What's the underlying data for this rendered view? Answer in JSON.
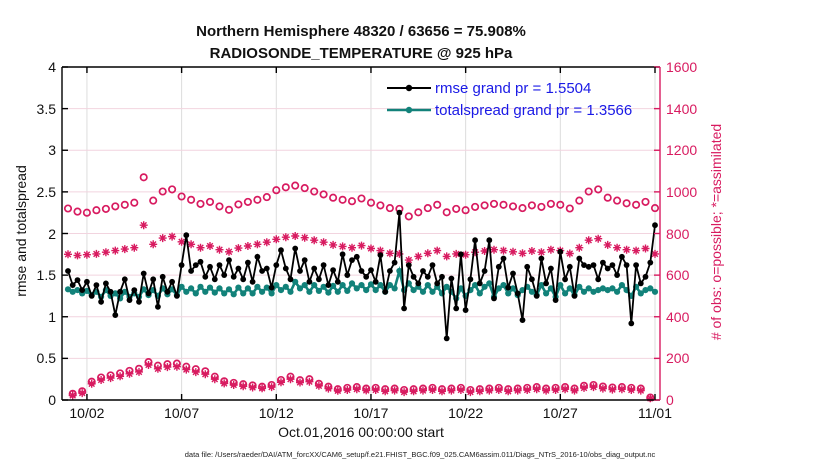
{
  "figure": {
    "footer": "data file: /Users/raeder/DAI/ATM_forcXX/CAM6_setup/f.e21.FHIST_BGC.f09_025.CAM6assim.011/Diags_NTrS_2016-10/obs_diag_output.nc"
  },
  "colors": {
    "rmse": "#000000",
    "totalspread": "#12827A",
    "obs": "#D81B60",
    "legend_text": "#1A1AE6",
    "grid_h": "#F2D4DF",
    "grid_v": "#DCDCDC",
    "axis": "#000000"
  },
  "chart_data": {
    "type": "line",
    "title": "Northern Hemisphere 48320 / 63656 = 75.908%",
    "subtitle": "RADIOSONDE_TEMPERATURE @ 925 hPa",
    "xlabel": "Oct.01,2016 00:00:00 start",
    "ylabel_left": "rmse and totalspread",
    "ylabel_right": "# of obs: o=possible; *=assimilated",
    "ylim_left": [
      0,
      4
    ],
    "ylim_right": [
      0,
      1600
    ],
    "grid": true,
    "x_start_day": 0,
    "x_step_days": 0.25,
    "x_tick_days": [
      1,
      6,
      11,
      16,
      21,
      26,
      31
    ],
    "x_tick_labels": [
      "10/02",
      "10/07",
      "10/12",
      "10/17",
      "10/22",
      "10/27",
      "11/01"
    ],
    "y_left_ticks": [
      0,
      0.5,
      1,
      1.5,
      2,
      2.5,
      3,
      3.5,
      4
    ],
    "y_left_tick_labels": [
      "0",
      "0.5",
      "1",
      "1.5",
      "2",
      "2.5",
      "3",
      "3.5",
      "4"
    ],
    "y_right_ticks": [
      0,
      200,
      400,
      600,
      800,
      1000,
      1200,
      1400,
      1600
    ],
    "y_right_tick_labels": [
      "0",
      "200",
      "400",
      "600",
      "800",
      "1000",
      "1200",
      "1400",
      "1600"
    ],
    "legend": [
      {
        "series": "rmse",
        "label": "rmse grand pr = 1.5504"
      },
      {
        "series": "totalspread",
        "label": "totalspread grand pr = 1.3566"
      }
    ],
    "series": [
      {
        "name": "rmse",
        "axis": "left",
        "marker": "filled-circle",
        "line": true,
        "color_key": "rmse",
        "values": [
          1.55,
          1.38,
          1.44,
          1.32,
          1.42,
          1.25,
          1.38,
          1.18,
          1.4,
          1.3,
          1.02,
          1.3,
          1.45,
          1.2,
          1.32,
          1.18,
          1.52,
          1.28,
          1.45,
          1.12,
          1.48,
          1.3,
          1.42,
          1.25,
          1.62,
          1.98,
          1.55,
          1.62,
          1.66,
          1.48,
          1.6,
          1.45,
          1.62,
          1.5,
          1.68,
          1.48,
          1.58,
          1.45,
          1.65,
          1.42,
          1.72,
          1.55,
          1.58,
          1.35,
          1.62,
          1.8,
          1.58,
          1.45,
          1.82,
          1.55,
          1.68,
          1.42,
          1.58,
          1.45,
          1.62,
          1.38,
          1.56,
          1.42,
          1.75,
          1.5,
          1.68,
          1.72,
          1.55,
          1.48,
          1.56,
          1.42,
          1.74,
          1.3,
          1.55,
          1.65,
          2.25,
          1.1,
          1.62,
          1.48,
          1.4,
          1.55,
          1.48,
          1.62,
          1.4,
          1.48,
          0.74,
          1.46,
          1.1,
          1.75,
          1.08,
          1.45,
          1.92,
          1.4,
          1.55,
          1.92,
          1.22,
          1.6,
          1.7,
          1.35,
          1.52,
          1.28,
          0.96,
          1.6,
          1.45,
          1.25,
          1.7,
          1.4,
          1.58,
          1.2,
          1.78,
          1.45,
          1.6,
          1.25,
          1.7,
          1.62,
          1.6,
          1.62,
          1.45,
          1.65,
          1.58,
          1.62,
          1.5,
          1.72,
          1.62,
          0.92,
          1.62,
          1.4,
          1.48,
          1.65,
          2.1
        ]
      },
      {
        "name": "totalspread",
        "axis": "left",
        "marker": "filled-circle",
        "line": true,
        "color_key": "totalspread",
        "values": [
          1.33,
          1.3,
          1.32,
          1.28,
          1.31,
          1.26,
          1.3,
          1.24,
          1.32,
          1.25,
          1.28,
          1.22,
          1.3,
          1.24,
          1.28,
          1.24,
          1.33,
          1.26,
          1.32,
          1.25,
          1.34,
          1.27,
          1.33,
          1.26,
          1.36,
          1.3,
          1.34,
          1.28,
          1.36,
          1.3,
          1.35,
          1.29,
          1.34,
          1.28,
          1.33,
          1.27,
          1.35,
          1.28,
          1.34,
          1.28,
          1.36,
          1.3,
          1.35,
          1.28,
          1.38,
          1.32,
          1.36,
          1.3,
          1.42,
          1.34,
          1.38,
          1.3,
          1.38,
          1.31,
          1.36,
          1.29,
          1.37,
          1.3,
          1.38,
          1.31,
          1.4,
          1.34,
          1.38,
          1.32,
          1.39,
          1.32,
          1.38,
          1.3,
          1.38,
          1.34,
          1.55,
          1.32,
          1.4,
          1.32,
          1.36,
          1.3,
          1.38,
          1.3,
          1.36,
          1.28,
          1.36,
          1.3,
          1.22,
          1.34,
          1.25,
          1.32,
          1.38,
          1.28,
          1.36,
          1.4,
          1.24,
          1.34,
          1.38,
          1.28,
          1.34,
          1.26,
          1.32,
          1.36,
          1.3,
          1.26,
          1.38,
          1.28,
          1.34,
          1.24,
          1.38,
          1.28,
          1.34,
          1.26,
          1.36,
          1.3,
          1.34,
          1.3,
          1.32,
          1.34,
          1.32,
          1.34,
          1.3,
          1.38,
          1.32,
          1.25,
          1.36,
          1.28,
          1.32,
          1.34,
          1.3
        ]
      },
      {
        "name": "possible",
        "axis": "right",
        "marker": "open-circle",
        "line": false,
        "color_key": "obs",
        "values": [
          920,
          30,
          905,
          42,
          900,
          88,
          912,
          108,
          918,
          118,
          930,
          128,
          938,
          140,
          948,
          150,
          1070,
          182,
          958,
          165,
          1002,
          172,
          1012,
          175,
          978,
          160,
          962,
          148,
          942,
          138,
          952,
          112,
          930,
          90,
          914,
          82,
          940,
          76,
          952,
          70,
          962,
          64,
          975,
          72,
          1008,
          96,
          1022,
          112,
          1030,
          95,
          1018,
          100,
          1002,
          78,
          988,
          64,
          972,
          52,
          962,
          58,
          955,
          62,
          968,
          55,
          948,
          58,
          935,
          52,
          922,
          55,
          918,
          48,
          882,
          52,
          902,
          55,
          922,
          58,
          938,
          52,
          902,
          55,
          918,
          58,
          912,
          48,
          928,
          52,
          935,
          55,
          942,
          58,
          938,
          52,
          930,
          55,
          922,
          58,
          935,
          62,
          928,
          55,
          942,
          58,
          938,
          62,
          920,
          55,
          958,
          68,
          1002,
          72,
          1012,
          65,
          972,
          60,
          958,
          62,
          945,
          58,
          938,
          55,
          952,
          12,
          922
        ]
      },
      {
        "name": "assimilated",
        "axis": "right",
        "marker": "asterisk",
        "line": false,
        "color_key": "obs",
        "values": [
          700,
          22,
          695,
          33,
          698,
          78,
          702,
          96,
          710,
          105,
          718,
          114,
          725,
          126,
          732,
          135,
          840,
          168,
          748,
          150,
          778,
          158,
          785,
          160,
          760,
          146,
          748,
          134,
          732,
          124,
          740,
          100,
          722,
          80,
          712,
          72,
          730,
          66,
          740,
          60,
          748,
          56,
          758,
          62,
          772,
          85,
          782,
          100,
          788,
          84,
          780,
          88,
          768,
          68,
          758,
          55,
          745,
          44,
          738,
          48,
          732,
          52,
          742,
          46,
          728,
          48,
          718,
          42,
          705,
          45,
          702,
          38,
          672,
          42,
          690,
          45,
          705,
          48,
          718,
          42,
          690,
          45,
          702,
          48,
          698,
          38,
          710,
          42,
          716,
          45,
          722,
          48,
          718,
          42,
          712,
          45,
          705,
          48,
          716,
          52,
          710,
          45,
          722,
          48,
          718,
          52,
          704,
          45,
          732,
          58,
          768,
          62,
          775,
          55,
          745,
          50,
          732,
          52,
          722,
          48,
          718,
          45,
          728,
          8,
          702
        ]
      }
    ]
  }
}
